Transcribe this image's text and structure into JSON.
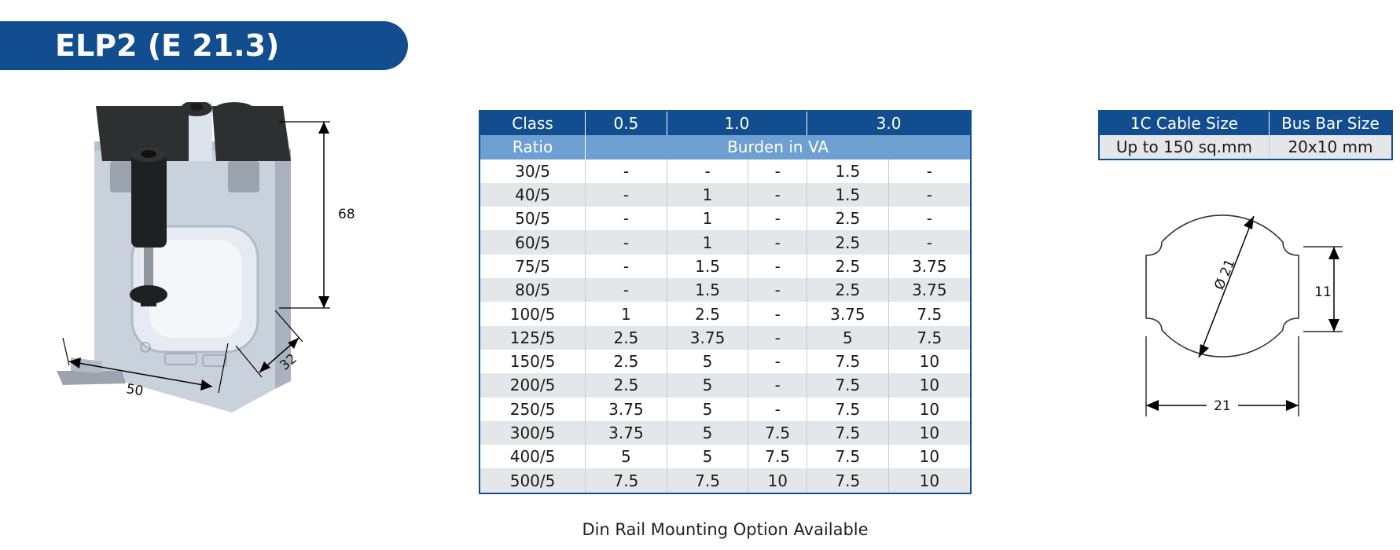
{
  "title": "ELP2 (E 21.3)",
  "product_dimensions": {
    "height": "68",
    "width": "50",
    "depth": "32"
  },
  "burden_table": {
    "header_class": "Class",
    "header_ratio": "Ratio",
    "classes": [
      "0.5",
      "1.0",
      "3.0"
    ],
    "burden_label": "Burden in VA",
    "rows": [
      [
        "30/5",
        "-",
        "-",
        "-",
        "1.5",
        "-"
      ],
      [
        "40/5",
        "-",
        "1",
        "-",
        "1.5",
        "-"
      ],
      [
        "50/5",
        "-",
        "1",
        "-",
        "2.5",
        "-"
      ],
      [
        "60/5",
        "-",
        "1",
        "-",
        "2.5",
        "-"
      ],
      [
        "75/5",
        "-",
        "1.5",
        "-",
        "2.5",
        "3.75"
      ],
      [
        "80/5",
        "-",
        "1.5",
        "-",
        "2.5",
        "3.75"
      ],
      [
        "100/5",
        "1",
        "2.5",
        "-",
        "3.75",
        "7.5"
      ],
      [
        "125/5",
        "2.5",
        "3.75",
        "-",
        "5",
        "7.5"
      ],
      [
        "150/5",
        "2.5",
        "5",
        "-",
        "7.5",
        "10"
      ],
      [
        "200/5",
        "2.5",
        "5",
        "-",
        "7.5",
        "10"
      ],
      [
        "250/5",
        "3.75",
        "5",
        "-",
        "7.5",
        "10"
      ],
      [
        "300/5",
        "3.75",
        "5",
        "7.5",
        "7.5",
        "10"
      ],
      [
        "400/5",
        "5",
        "5",
        "7.5",
        "7.5",
        "10"
      ],
      [
        "500/5",
        "7.5",
        "7.5",
        "10",
        "7.5",
        "10"
      ]
    ]
  },
  "cable_table": {
    "headers": [
      "1C Cable Size",
      "Bus Bar Size"
    ],
    "values": [
      "Up to 150 sq.mm",
      "20x10 mm"
    ]
  },
  "section_dimensions": {
    "diameter": "Ø 21",
    "height": "11",
    "width": "21"
  },
  "footnote": "Din Rail Mounting Option Available",
  "colors": {
    "primary": "#124d8f",
    "secondary": "#6e9fd1",
    "row_alt": "#e4e6e9"
  }
}
